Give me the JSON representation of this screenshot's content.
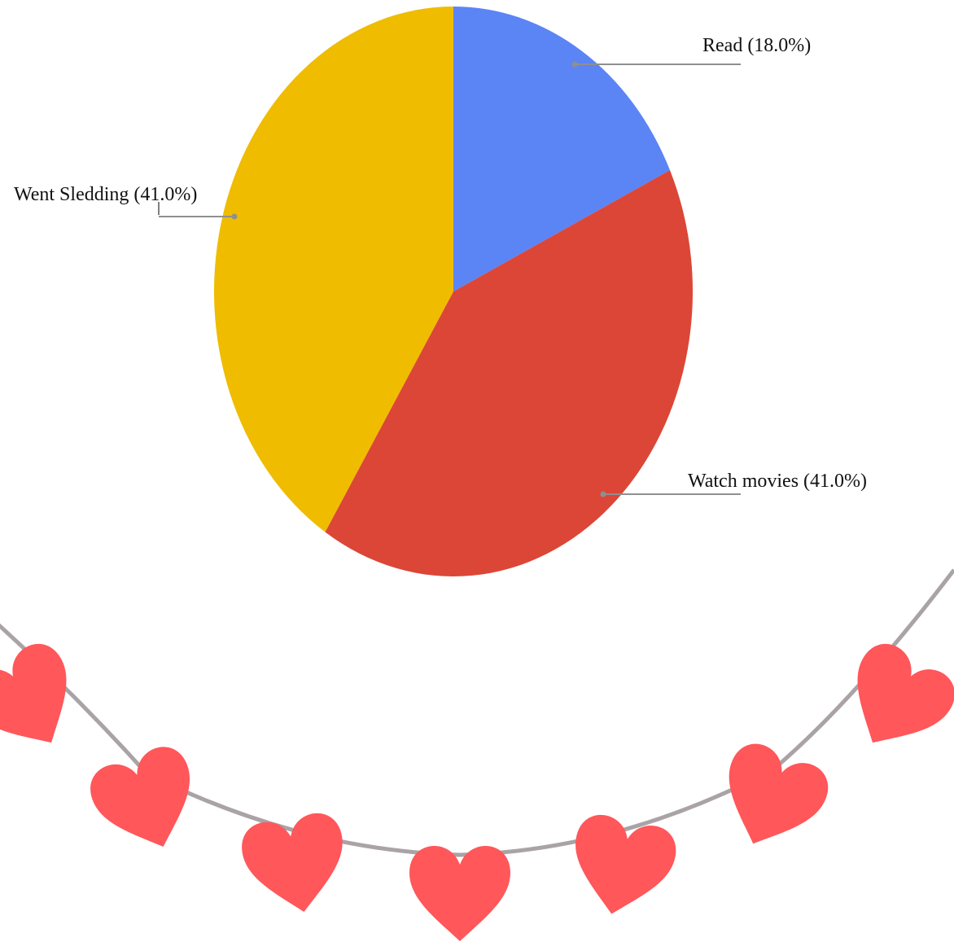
{
  "chart_data": {
    "type": "pie",
    "title": "",
    "slices": [
      {
        "label": "Read",
        "value": 18.0,
        "display": "Read  (18.0%)",
        "color": "#5b84f5"
      },
      {
        "label": "Watch movies",
        "value": 41.0,
        "display": "Watch movies (41.0%)",
        "color": "#dc4637"
      },
      {
        "label": "Went Sledding",
        "value": 41.0,
        "display": "Went Sledding (41.0%)",
        "color": "#efbc00"
      }
    ],
    "start_angle_deg": 0,
    "direction": "clockwise",
    "legend": "none",
    "labels": "outside-with-leader-lines"
  },
  "decoration": {
    "garland_string_color": "#aaa3a6",
    "heart_color": "#ff575a",
    "heart_icon": "heart-icon",
    "heart_count": 7
  }
}
